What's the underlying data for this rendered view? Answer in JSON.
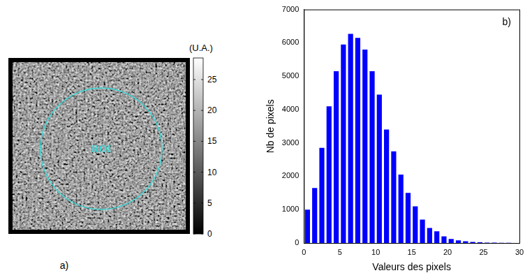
{
  "chart_data": [
    {
      "type": "image",
      "label": "a)",
      "annotations": [
        "ROI"
      ],
      "colorbar": {
        "label": "(U.A.)",
        "range": [
          0,
          28.5
        ],
        "ticks": [
          0,
          5,
          10,
          15,
          20,
          25
        ]
      }
    },
    {
      "type": "histogram",
      "label": "b)",
      "x_label": "Valeurs des pixels",
      "y_label": "Nb de pixels",
      "bins": [
        0,
        1,
        2,
        3,
        4,
        5,
        6,
        7,
        8,
        9,
        10,
        11,
        12,
        13,
        14,
        15,
        16,
        17,
        18,
        19,
        20,
        21,
        22,
        23,
        24,
        25,
        26,
        27,
        28,
        29,
        30
      ],
      "counts": [
        1000,
        1650,
        2850,
        4100,
        5150,
        5950,
        6270,
        6150,
        5800,
        5150,
        4450,
        3400,
        2750,
        2050,
        1500,
        1100,
        700,
        450,
        350,
        200,
        120,
        80,
        50,
        30,
        20,
        10,
        8,
        5,
        3,
        2
      ],
      "color": "#0000ff",
      "xlim": [
        0,
        30
      ],
      "xticks": [
        0,
        5,
        10,
        15,
        20,
        25,
        30
      ],
      "ylim": [
        0,
        7000
      ],
      "yticks": [
        0,
        1000,
        2000,
        3000,
        4000,
        5000,
        6000,
        7000
      ],
      "grid": false
    }
  ]
}
